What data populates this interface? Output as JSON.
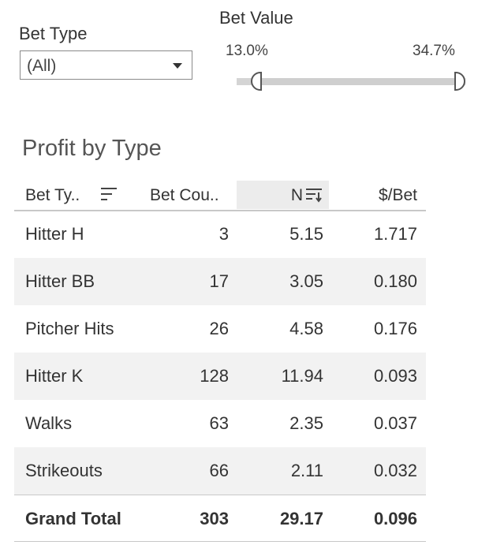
{
  "filters": {
    "bet_type": {
      "title": "Bet Type",
      "selected": "(All)"
    },
    "bet_value": {
      "title": "Bet Value",
      "min_label": "13.0%",
      "max_label": "34.7%"
    }
  },
  "table": {
    "title": "Profit by Type",
    "columns": {
      "type": "Bet Ty..",
      "count": "Bet Cou..",
      "net": "N",
      "per_bet": "$/Bet"
    },
    "rows": [
      {
        "type": "Hitter H",
        "count": "3",
        "net": "5.15",
        "per_bet": "1.717"
      },
      {
        "type": "Hitter BB",
        "count": "17",
        "net": "3.05",
        "per_bet": "0.180"
      },
      {
        "type": "Pitcher Hits",
        "count": "26",
        "net": "4.58",
        "per_bet": "0.176"
      },
      {
        "type": "Hitter K",
        "count": "128",
        "net": "11.94",
        "per_bet": "0.093"
      },
      {
        "type": "Walks",
        "count": "63",
        "net": "2.35",
        "per_bet": "0.037"
      },
      {
        "type": "Strikeouts",
        "count": "66",
        "net": "2.11",
        "per_bet": "0.032"
      }
    ],
    "total": {
      "type": "Grand Total",
      "count": "303",
      "net": "29.17",
      "per_bet": "0.096"
    }
  },
  "icons": {
    "type_sort": "sort-descending-icon",
    "net_sort": "sort-descending-icon"
  },
  "colors": {
    "text": "#333333",
    "shade": "#f2f2f2",
    "slider_track": "#d4d4d4"
  }
}
